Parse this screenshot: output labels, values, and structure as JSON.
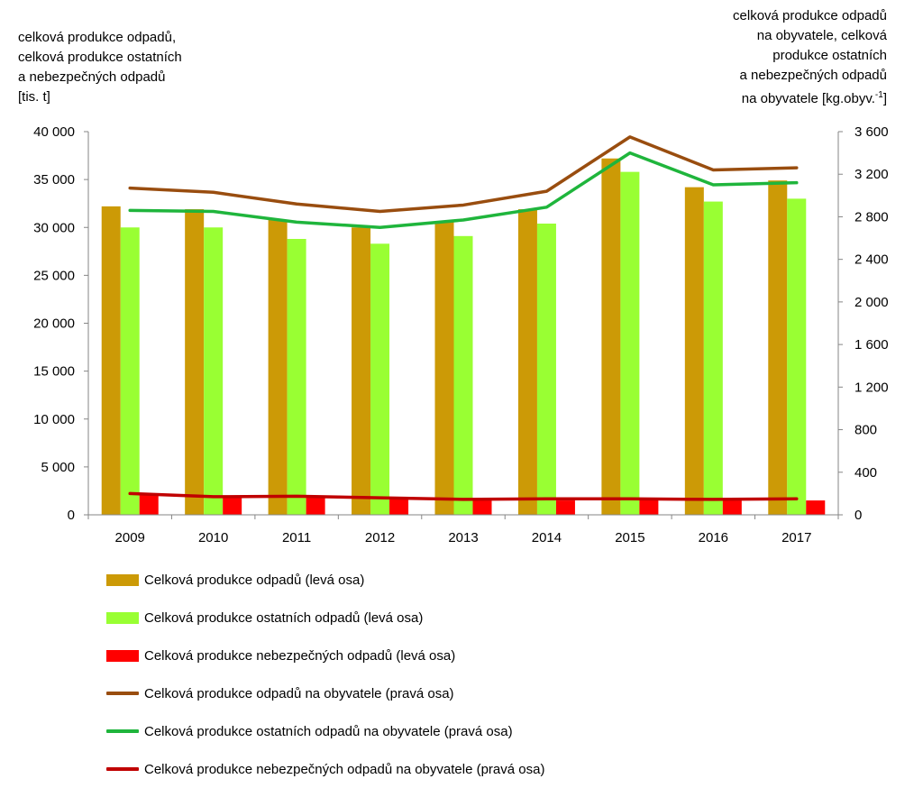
{
  "chart_data": {
    "type": "bar",
    "categories": [
      "2009",
      "2010",
      "2011",
      "2012",
      "2013",
      "2014",
      "2015",
      "2016",
      "2017"
    ],
    "y_left": {
      "title_lines": [
        "celková produkce odpadů,",
        "celková produkce ostatních",
        "a nebezpečných odpadů",
        "[tis. t]"
      ],
      "ylim": [
        0,
        40000
      ],
      "ticks": [
        0,
        5000,
        10000,
        15000,
        20000,
        25000,
        30000,
        35000,
        40000
      ],
      "tick_labels": [
        "0",
        "5 000",
        "10 000",
        "15 000",
        "20 000",
        "25 000",
        "30 000",
        "35 000",
        "40 000"
      ]
    },
    "y_right": {
      "title_lines": [
        "celková produkce odpadů",
        "na obyvatele, celková",
        "produkce ostatních",
        "a nebezpečných odpadů",
        "na obyvatele [kg.obyv.-1]"
      ],
      "ylim": [
        0,
        3600
      ],
      "ticks": [
        0,
        400,
        800,
        1200,
        1600,
        2000,
        2400,
        2800,
        3200,
        3600
      ],
      "tick_labels": [
        "0",
        "400",
        "800",
        "1 200",
        "1 600",
        "2 000",
        "2 400",
        "2 800",
        "3 200",
        "3 600"
      ]
    },
    "grid": false,
    "legend_placement": "bottom",
    "series": [
      {
        "name": "Celková produkce odpadů (levá osa)",
        "kind": "bar",
        "axis": "left",
        "color": "#cc9a06",
        "values": [
          32200,
          31900,
          30800,
          30000,
          30600,
          31900,
          37200,
          34200,
          34900
        ]
      },
      {
        "name": "Celková produkce ostatních odpadů (levá osa)",
        "kind": "bar",
        "axis": "left",
        "color": "#99ff33",
        "values": [
          30000,
          30000,
          28800,
          28300,
          29100,
          30400,
          35800,
          32700,
          33000
        ]
      },
      {
        "name": "Celková produkce nebezpečných odpadů (levá osa)",
        "kind": "bar",
        "axis": "left",
        "color": "#ff0000",
        "values": [
          2200,
          1800,
          1900,
          1700,
          1500,
          1500,
          1600,
          1500,
          1500
        ]
      },
      {
        "name": "Celková produkce odpadů na obyvatele (pravá osa)",
        "kind": "line",
        "axis": "right",
        "color": "#994d0f",
        "values": [
          3070,
          3030,
          2920,
          2850,
          2910,
          3040,
          3550,
          3240,
          3260
        ]
      },
      {
        "name": "Celková produkce ostatních odpadů na obyvatele (pravá osa)",
        "kind": "line",
        "axis": "right",
        "color": "#1fb53c",
        "values": [
          2860,
          2850,
          2750,
          2700,
          2770,
          2890,
          3400,
          3100,
          3120
        ]
      },
      {
        "name": "Celková produkce nebezpečných odpadů na obyvatele (pravá osa)",
        "kind": "line",
        "axis": "right",
        "color": "#c00000",
        "values": [
          200,
          170,
          175,
          160,
          145,
          150,
          150,
          145,
          150
        ]
      }
    ]
  }
}
